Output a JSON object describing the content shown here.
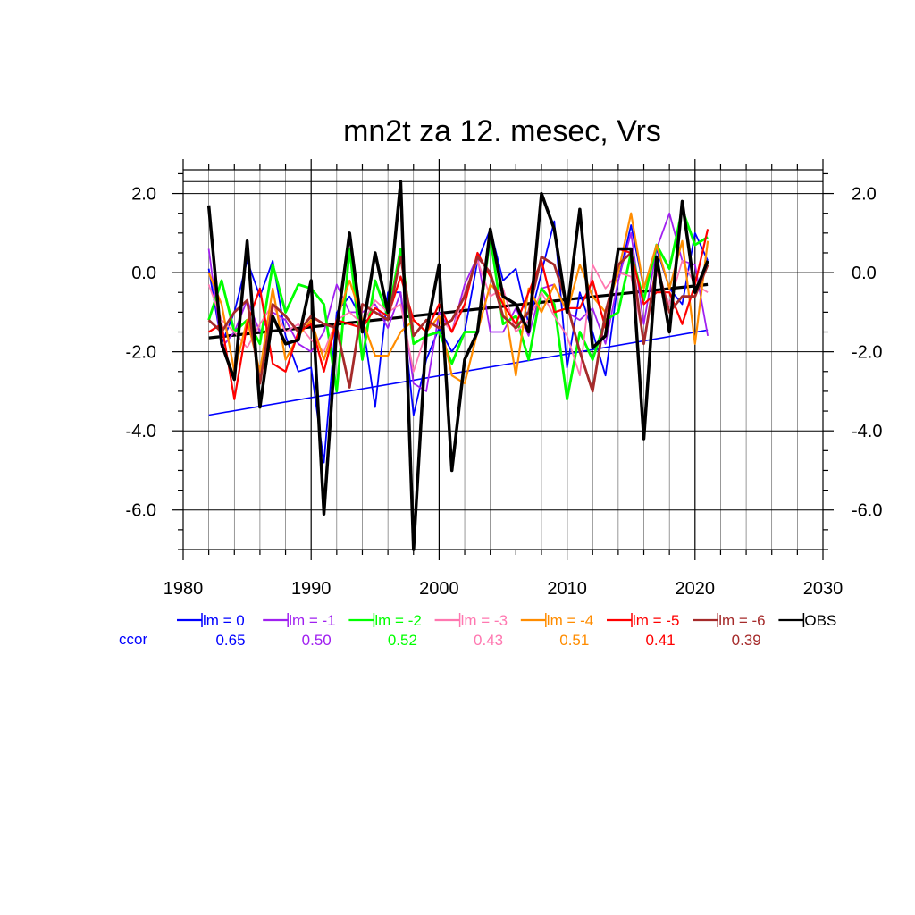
{
  "chart_data": {
    "type": "line",
    "title": "mn2t za 12. mesec, Vrs",
    "xlim": [
      1980,
      2030
    ],
    "ylim": [
      -7,
      2.6
    ],
    "x_ticks": [
      1980,
      1990,
      2000,
      2010,
      2020,
      2030
    ],
    "y_ticks": [
      2.0,
      0.0,
      -2.0,
      -4.0,
      -6.0
    ],
    "x_tick_labels": [
      "1980",
      "1990",
      "2000",
      "2010",
      "2020",
      "2030"
    ],
    "y_tick_labels": [
      "2.0",
      "0.0",
      "-2.0",
      "-4.0",
      "-6.0"
    ],
    "reference_lines": [
      2.0,
      0.0,
      -2.0,
      -4.0,
      -6.0
    ],
    "grid": true,
    "legend_position": "bottom",
    "ccor_label": "ccor",
    "x": [
      1982,
      1983,
      1984,
      1985,
      1986,
      1987,
      1988,
      1989,
      1990,
      1991,
      1992,
      1993,
      1994,
      1995,
      1996,
      1997,
      1998,
      1999,
      2000,
      2001,
      2002,
      2003,
      2004,
      2005,
      2006,
      2007,
      2008,
      2009,
      2010,
      2011,
      2012,
      2013,
      2014,
      2015,
      2016,
      2017,
      2018,
      2019,
      2020,
      2021
    ],
    "series": [
      {
        "name": "lm = 0",
        "color": "#0000ff",
        "ccor": "0.65",
        "width": 1.8,
        "values": [
          0.1,
          -1.8,
          -1.0,
          0.3,
          -0.6,
          0.3,
          -1.6,
          -2.5,
          -2.4,
          -4.8,
          -1.0,
          -0.6,
          -1.2,
          -3.4,
          -0.5,
          -0.5,
          -3.6,
          -2.2,
          -1.4,
          -2.0,
          -1.5,
          0.3,
          1.1,
          -0.2,
          0.1,
          -1.3,
          0.0,
          1.3,
          -2.4,
          -0.5,
          -1.5,
          -2.6,
          -0.2,
          1.2,
          -0.4,
          0.6,
          -0.4,
          -0.8,
          1.0,
          0.3
        ]
      },
      {
        "name": "lm = -1",
        "color": "#a020f0",
        "ccor": "0.50",
        "width": 1.8,
        "values": [
          0.6,
          -1.9,
          -1.5,
          -0.7,
          -1.5,
          -1.0,
          -1.2,
          -1.8,
          -2.0,
          -1.5,
          -0.3,
          -1.0,
          -1.0,
          -0.8,
          -1.4,
          -0.5,
          -2.8,
          -3.0,
          -1.0,
          -1.5,
          -0.3,
          0.4,
          -1.5,
          -1.5,
          -0.9,
          -1.6,
          -0.4,
          -0.3,
          -1.0,
          -1.2,
          -0.9,
          -1.8,
          -0.2,
          1.0,
          -1.3,
          0.6,
          1.5,
          0.3,
          0.2,
          -1.6
        ]
      },
      {
        "name": "lm = -2",
        "color": "#00ff00",
        "ccor": "0.52",
        "width": 2.8,
        "values": [
          -1.2,
          -0.2,
          -1.5,
          -1.2,
          -1.8,
          0.2,
          -1.0,
          -0.3,
          -0.4,
          -0.8,
          -3.0,
          0.6,
          -2.2,
          -0.2,
          -1.1,
          0.6,
          -1.8,
          -1.6,
          -1.5,
          -2.3,
          -1.5,
          -1.5,
          0.9,
          -1.3,
          -1.1,
          -2.2,
          -0.4,
          -0.8,
          -3.2,
          -1.5,
          -2.2,
          -1.2,
          -1.0,
          0.5,
          -0.7,
          0.7,
          0.1,
          1.6,
          0.7,
          0.9
        ]
      },
      {
        "name": "lm = -3",
        "color": "#ff77b0",
        "ccor": "0.43",
        "width": 1.8,
        "values": [
          -0.3,
          -1.2,
          -1.5,
          -1.9,
          -1.3,
          -0.8,
          -1.5,
          -1.3,
          -1.7,
          -2.0,
          -1.2,
          -1.0,
          -1.3,
          -0.7,
          -1.0,
          -0.8,
          -2.5,
          -1.5,
          -1.1,
          -1.5,
          -0.5,
          0.3,
          -0.6,
          -0.4,
          -1.5,
          -1.2,
          -0.5,
          -1.1,
          -1.6,
          -2.6,
          0.2,
          -0.4,
          0.0,
          -0.1,
          -1.7,
          0.0,
          -0.8,
          0.3,
          -0.3,
          -0.5
        ]
      },
      {
        "name": "lm = -4",
        "color": "#ff8c00",
        "ccor": "0.51",
        "width": 2.2,
        "values": [
          0.0,
          -0.8,
          -2.5,
          -1.2,
          -2.5,
          -0.4,
          -2.2,
          -1.6,
          -1.2,
          -2.2,
          -1.2,
          -0.2,
          -1.2,
          -2.1,
          -2.1,
          -1.5,
          -1.2,
          -1.5,
          -1.1,
          -2.6,
          -2.8,
          -1.5,
          -0.3,
          -0.6,
          -2.6,
          -0.4,
          -1.0,
          -0.3,
          -1.0,
          0.2,
          -0.6,
          -1.0,
          0.0,
          1.5,
          -0.4,
          0.7,
          -0.4,
          0.8,
          -1.8,
          0.8
        ]
      },
      {
        "name": "lm = -5",
        "color": "#ff0000",
        "ccor": "0.41",
        "width": 2.2,
        "values": [
          -1.5,
          -1.3,
          -3.2,
          -1.3,
          -0.4,
          -2.3,
          -2.5,
          -1.5,
          -1.3,
          -2.5,
          -1.2,
          -1.3,
          -1.4,
          -0.9,
          -1.1,
          -0.1,
          -1.2,
          -1.5,
          -0.8,
          -1.5,
          -0.8,
          0.5,
          -0.1,
          -0.8,
          -1.3,
          -0.5,
          0.3,
          -1.0,
          -0.9,
          -0.9,
          -0.2,
          -1.4,
          0.6,
          0.5,
          -0.8,
          -0.5,
          -0.5,
          -1.3,
          -0.3,
          1.1
        ]
      },
      {
        "name": "lm = -6",
        "color": "#a52a2a",
        "ccor": "0.39",
        "width": 2.8,
        "values": [
          -1.2,
          -1.5,
          -1.0,
          -0.7,
          -2.8,
          -0.8,
          -1.1,
          -1.5,
          -1.1,
          -1.3,
          -1.4,
          -2.9,
          -0.8,
          -1.0,
          -1.2,
          0.4,
          -1.6,
          -1.2,
          -1.4,
          -1.2,
          -0.6,
          0.4,
          0.0,
          -1.1,
          -1.4,
          -1.0,
          0.4,
          0.2,
          -0.8,
          -2.0,
          -3.0,
          -1.0,
          0.2,
          0.5,
          -1.8,
          0.2,
          -1.0,
          -0.6,
          -0.6,
          0.2
        ]
      },
      {
        "name": "OBS",
        "color": "#000000",
        "ccor": "",
        "width": 3.5,
        "values": [
          1.7,
          -1.8,
          -2.7,
          0.8,
          -3.4,
          -1.1,
          -1.8,
          -1.7,
          -0.2,
          -6.1,
          -1.4,
          1.0,
          -1.5,
          0.5,
          -1.0,
          2.3,
          -7.0,
          -1.5,
          0.2,
          -5.0,
          -2.2,
          -1.5,
          1.1,
          -0.6,
          -0.8,
          -1.5,
          2.0,
          1.1,
          -1.0,
          1.6,
          -1.9,
          -1.6,
          0.6,
          0.6,
          -4.2,
          0.4,
          -1.5,
          1.8,
          -0.5,
          0.3
        ]
      }
    ],
    "trend_lines": [
      {
        "series": "lm = 0",
        "color": "#0000ff",
        "width": 1.6,
        "x": [
          1982,
          2021
        ],
        "y": [
          -3.6,
          -1.45
        ]
      },
      {
        "series": "OBS",
        "color": "#000000",
        "width": 3.2,
        "x": [
          1982,
          2021
        ],
        "y": [
          -1.65,
          -0.3
        ]
      }
    ]
  }
}
